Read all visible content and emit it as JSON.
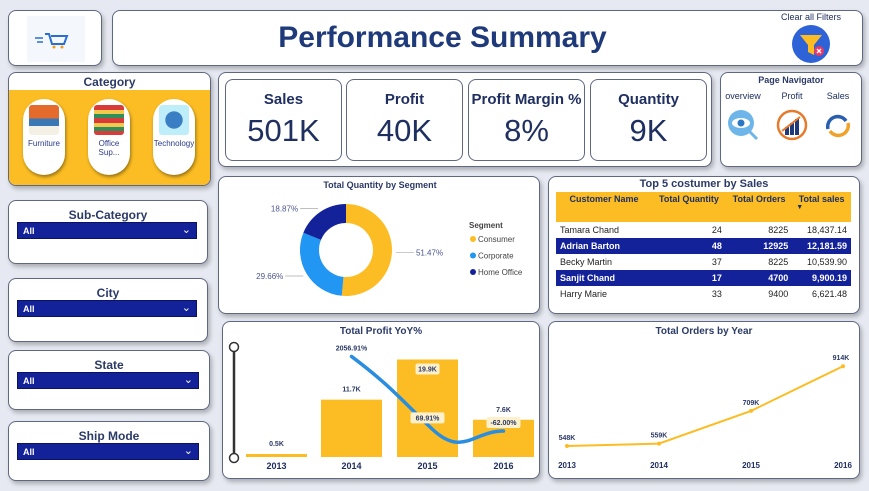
{
  "header": {
    "title": "Performance Summary",
    "clear_filters": "Clear all Filters"
  },
  "category": {
    "title": "Category",
    "items": [
      {
        "label": "Furniture"
      },
      {
        "label": "Office Sup..."
      },
      {
        "label": "Technology"
      }
    ]
  },
  "kpis": [
    {
      "label": "Sales",
      "value": "501K"
    },
    {
      "label": "Profit",
      "value": "40K"
    },
    {
      "label": "Profit Margin %",
      "value": "8%"
    },
    {
      "label": "Quantity",
      "value": "9K"
    }
  ],
  "navigator": {
    "title": "Page Navigator",
    "items": [
      {
        "label": "overview",
        "icon": "eye-magnifier-icon"
      },
      {
        "label": "Profit",
        "icon": "growth-chart-icon"
      },
      {
        "label": "Sales",
        "icon": "exchange-arrows-icon"
      }
    ]
  },
  "slicers": [
    {
      "title": "Sub-Category",
      "value": "All"
    },
    {
      "title": "City",
      "value": "All"
    },
    {
      "title": "State",
      "value": "All"
    },
    {
      "title": "Ship Mode",
      "value": "All"
    }
  ],
  "top_customers": {
    "title": "Top 5 costumer by Sales",
    "columns": [
      "Customer Name",
      "Total Quantity",
      "Total Orders",
      "Total sales"
    ],
    "rows": [
      [
        "Tamara Chand",
        "24",
        "8225",
        "18,437.14"
      ],
      [
        "Adrian Barton",
        "48",
        "12925",
        "12,181.59"
      ],
      [
        "Becky Martin",
        "37",
        "8225",
        "10,539.90"
      ],
      [
        "Sanjit Chand",
        "17",
        "4700",
        "9,900.19"
      ],
      [
        "Harry Marie",
        "33",
        "9400",
        "6,621.48"
      ]
    ]
  },
  "chart_data": [
    {
      "type": "pie",
      "title": "Total Quantity by Segment",
      "legend_title": "Segment",
      "legend": "right",
      "categories": [
        "Consumer",
        "Corporate",
        "Home Office"
      ],
      "values": [
        51.47,
        29.66,
        18.87
      ],
      "labels": [
        "51.47%",
        "29.66%",
        "18.87%"
      ],
      "colors": [
        "#fbbd23",
        "#2196f3",
        "#14229a"
      ]
    },
    {
      "type": "bar",
      "title": "Total Profit YoY%",
      "categories": [
        "2013",
        "2014",
        "2015",
        "2016"
      ],
      "values": [
        0.5,
        11.7,
        19.9,
        7.6
      ],
      "labels": [
        "0.5K",
        "11.7K",
        "19.9K",
        "7.6K"
      ],
      "bar_color": "#fbbd23",
      "line": {
        "values": [
          null,
          2056.91,
          69.91,
          -62.0
        ],
        "labels": [
          "",
          "2056.91%",
          "69.91%",
          "-62.00%"
        ],
        "color": "#2a8de0"
      }
    },
    {
      "type": "line",
      "title": "Total Orders by Year",
      "categories": [
        "2013",
        "2014",
        "2015",
        "2016"
      ],
      "values": [
        548,
        559,
        709,
        914
      ],
      "labels": [
        "548K",
        "559K",
        "709K",
        "914K"
      ],
      "color": "#fbbd23"
    }
  ]
}
